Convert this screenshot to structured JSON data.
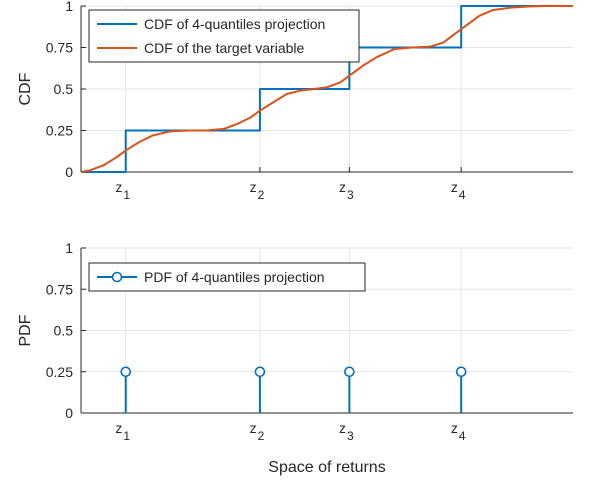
{
  "chart_data": [
    {
      "type": "line",
      "ylabel": "CDF",
      "xlabel": "",
      "xlim": [
        0,
        5.5
      ],
      "ylim": [
        0,
        1
      ],
      "yticks": [
        0,
        0.25,
        0.5,
        0.75,
        1
      ],
      "yticklabels": [
        "0",
        "0.25",
        "0.5",
        "0.75",
        "1"
      ],
      "xticks": [
        {
          "base": "z",
          "sub": "1",
          "value": 0.5
        },
        {
          "base": "z",
          "sub": "2",
          "value": 2
        },
        {
          "base": "z",
          "sub": "3",
          "value": 3
        },
        {
          "base": "z",
          "sub": "4",
          "value": 4.25
        }
      ],
      "grid": true,
      "legend_position": "top-left",
      "series": [
        {
          "name": "CDF of 4-quantiles projection",
          "style": "step",
          "color": "#0072BD",
          "x": [
            0,
            0.5,
            0.5,
            2,
            2,
            3,
            3,
            4.25,
            4.25,
            5.5
          ],
          "y": [
            0,
            0,
            0.25,
            0.25,
            0.5,
            0.5,
            0.75,
            0.75,
            1,
            1
          ]
        },
        {
          "name": "CDF of the target variable",
          "style": "smooth",
          "color": "#D95319",
          "x": [
            0,
            0.1,
            0.25,
            0.4,
            0.5,
            0.65,
            0.8,
            1.0,
            1.2,
            1.4,
            1.6,
            1.75,
            1.9,
            2.0,
            2.15,
            2.3,
            2.45,
            2.6,
            2.75,
            2.9,
            3.0,
            3.15,
            3.3,
            3.5,
            3.7,
            3.9,
            4.05,
            4.25,
            4.45,
            4.6,
            4.8,
            5.0,
            5.2,
            5.5
          ],
          "y": [
            0,
            0.01,
            0.04,
            0.09,
            0.13,
            0.18,
            0.22,
            0.245,
            0.25,
            0.25,
            0.26,
            0.29,
            0.33,
            0.37,
            0.42,
            0.47,
            0.49,
            0.5,
            0.51,
            0.54,
            0.58,
            0.64,
            0.69,
            0.74,
            0.75,
            0.755,
            0.78,
            0.86,
            0.94,
            0.975,
            0.99,
            0.997,
            1.0,
            1.0
          ]
        }
      ]
    },
    {
      "type": "stem",
      "ylabel": "PDF",
      "xlabel": "Space of returns",
      "xlim": [
        0,
        5.5
      ],
      "ylim": [
        0,
        1
      ],
      "yticks": [
        0,
        0.25,
        0.5,
        0.75,
        1
      ],
      "yticklabels": [
        "0",
        "0.25",
        "0.5",
        "0.75",
        "1"
      ],
      "xticks": [
        {
          "base": "z",
          "sub": "1",
          "value": 0.5
        },
        {
          "base": "z",
          "sub": "2",
          "value": 2
        },
        {
          "base": "z",
          "sub": "3",
          "value": 3
        },
        {
          "base": "z",
          "sub": "4",
          "value": 4.25
        }
      ],
      "grid": true,
      "legend_position": "top-left",
      "series": [
        {
          "name": "PDF of 4-quantiles projection",
          "style": "stem",
          "color": "#0072BD",
          "x": [
            0.5,
            2,
            3,
            4.25
          ],
          "y": [
            0.25,
            0.25,
            0.25,
            0.25
          ]
        }
      ]
    }
  ]
}
